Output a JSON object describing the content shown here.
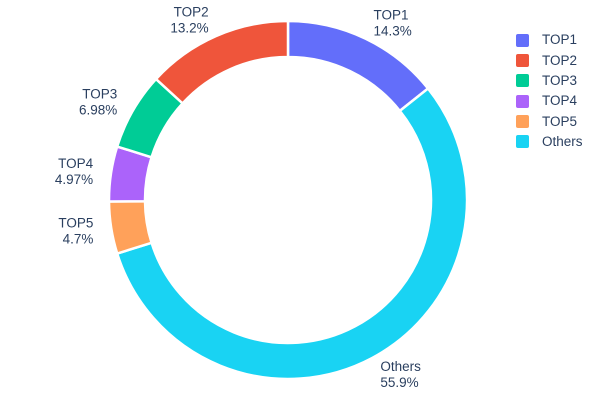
{
  "chart_data": {
    "type": "pie",
    "subtype": "donut",
    "title": "",
    "labels": [
      "TOP1",
      "TOP2",
      "TOP3",
      "TOP4",
      "TOP5",
      "Others"
    ],
    "values": [
      14.3,
      13.2,
      6.98,
      4.97,
      4.7,
      55.9
    ],
    "percent_labels": [
      "14.3%",
      "13.2%",
      "6.98%",
      "4.97%",
      "4.7%",
      "55.9%"
    ],
    "colors": [
      "#636efa",
      "#ef553b",
      "#00cc96",
      "#ab63fa",
      "#ffa15a",
      "#19d3f3"
    ],
    "hole": 0.8,
    "start_angle_deg": 0,
    "display_order_clockwise": [
      "TOP1",
      "Others",
      "TOP5",
      "TOP4",
      "TOP3",
      "TOP2"
    ],
    "label_position": "outside",
    "label_text_color": "#2a3f5f",
    "slice_border_color": "#ffffff",
    "legend": {
      "position": "right",
      "items": [
        "TOP1",
        "TOP2",
        "TOP3",
        "TOP4",
        "TOP5",
        "Others"
      ]
    }
  }
}
